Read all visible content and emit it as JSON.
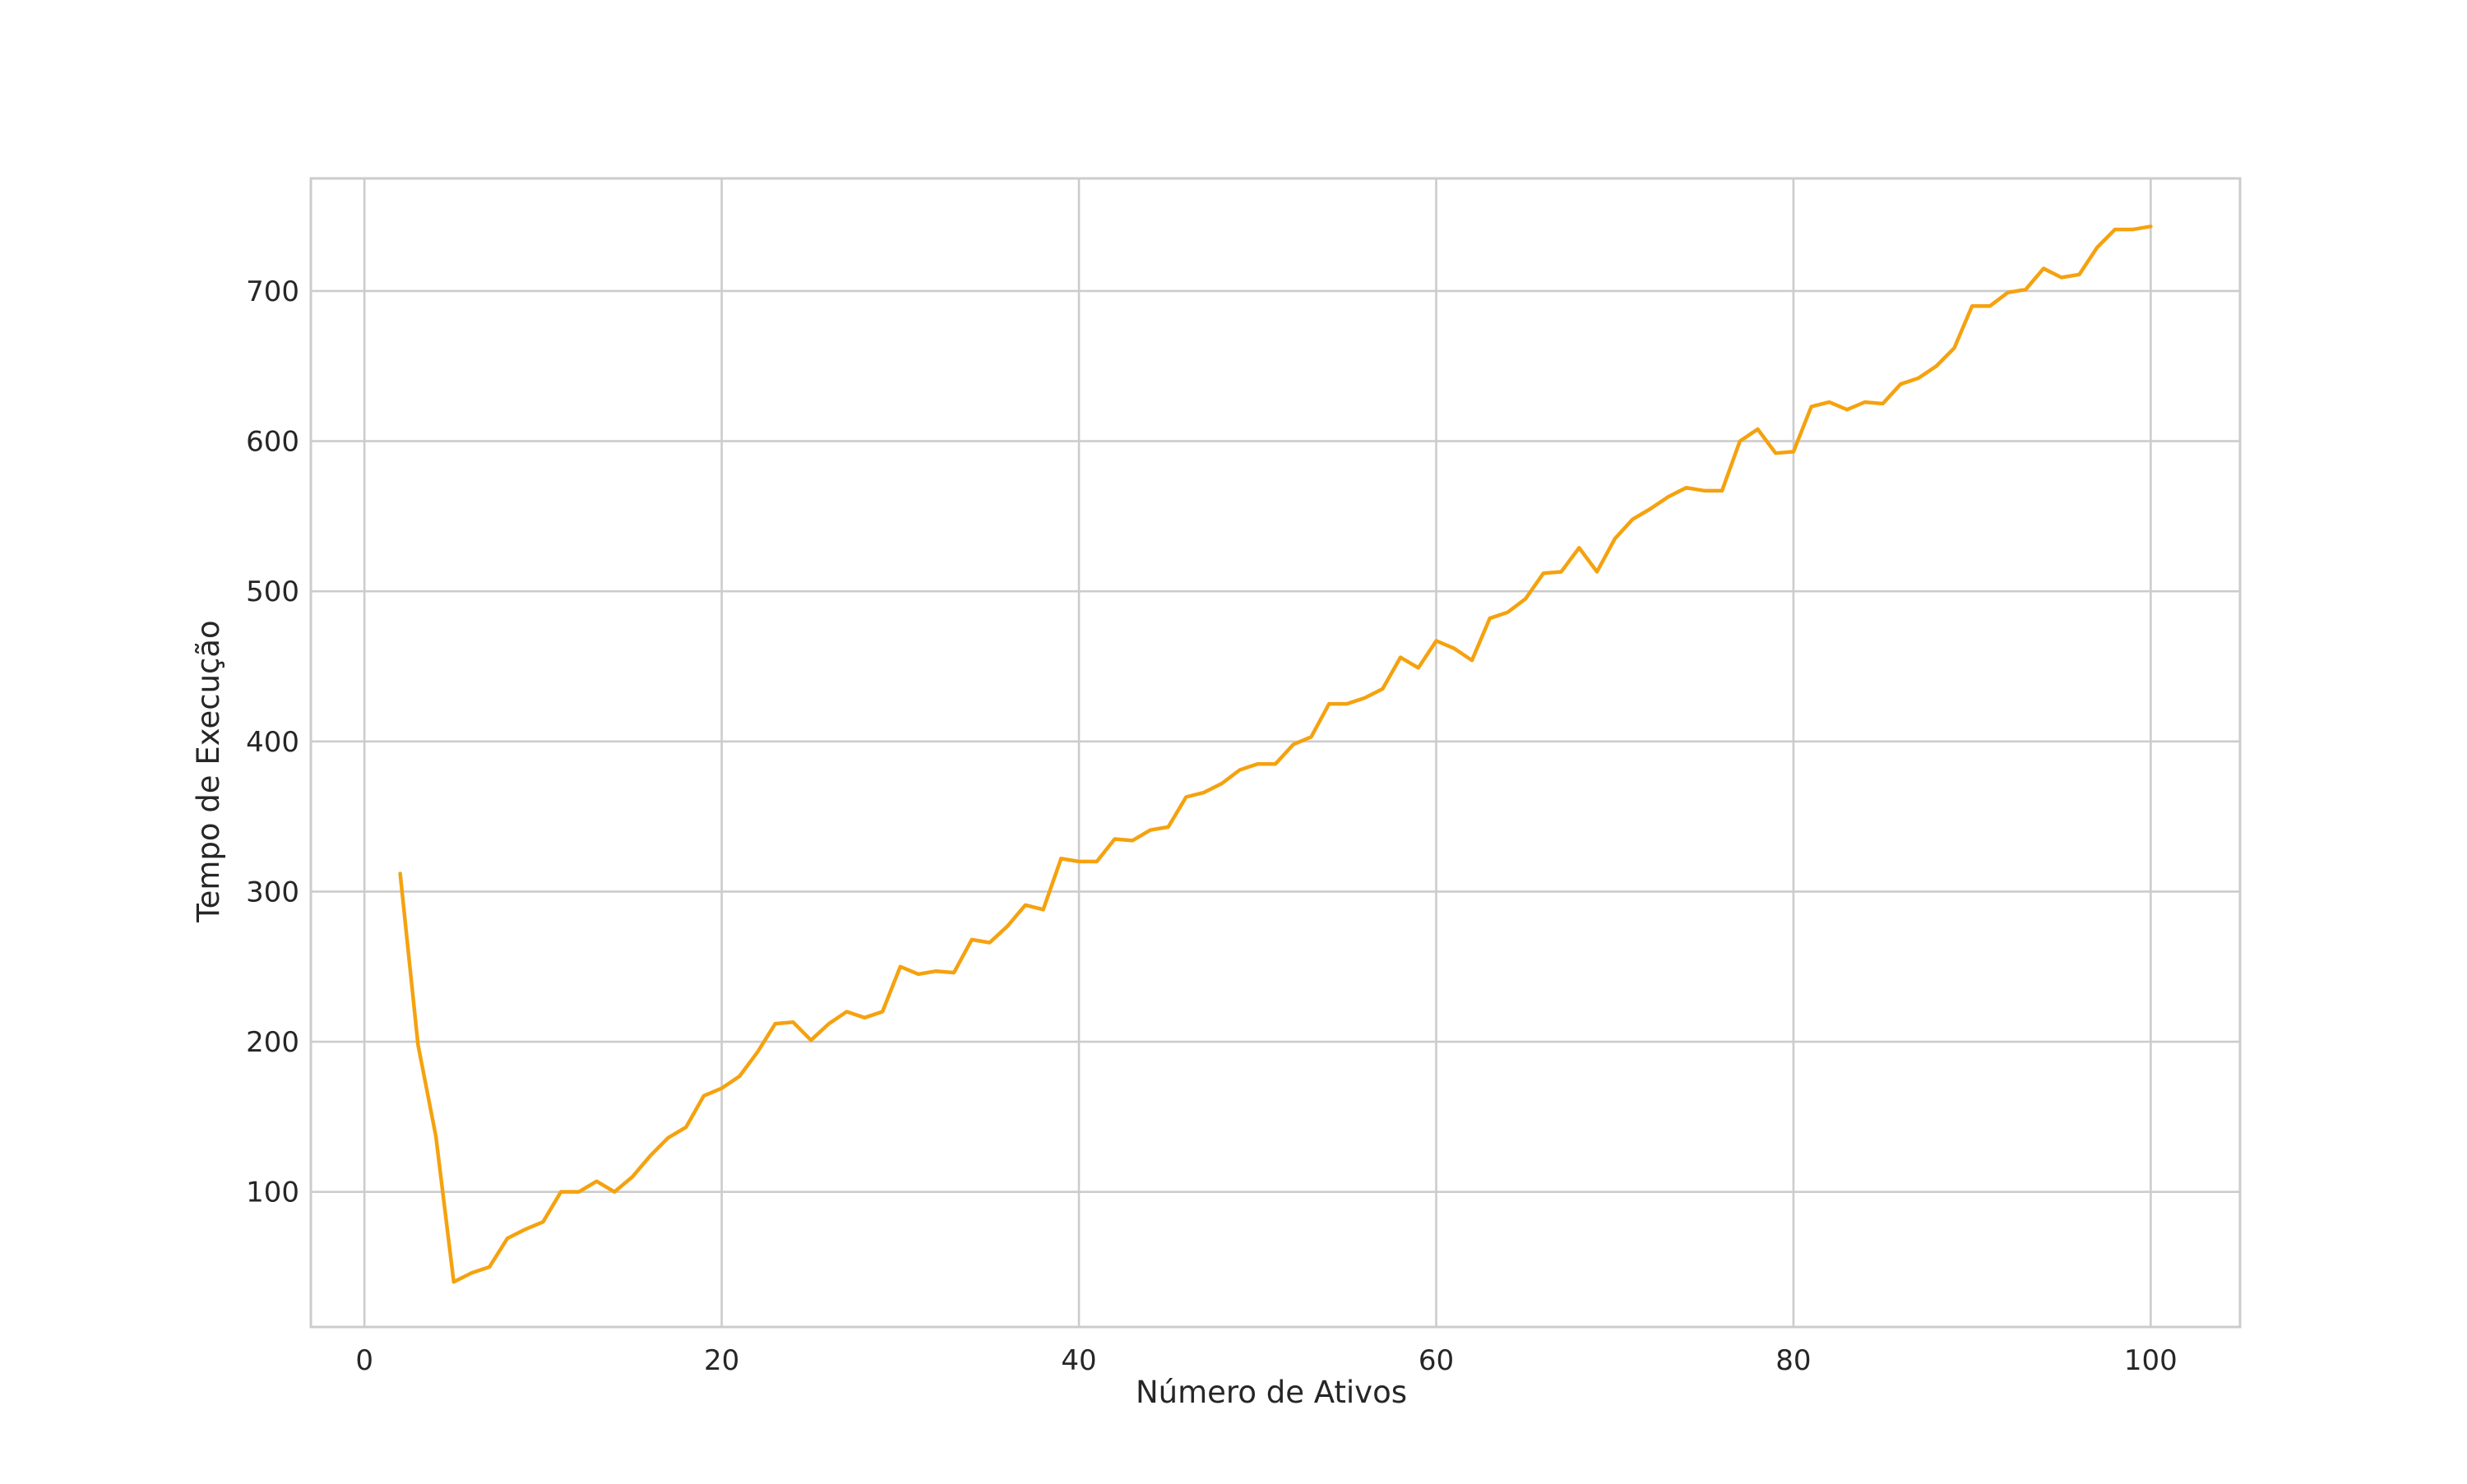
{
  "chart_data": {
    "type": "line",
    "title": "",
    "xlabel": "Número de Ativos",
    "ylabel": "Tempo de Execução",
    "xlim": [
      -3,
      105
    ],
    "ylim": [
      10,
      775
    ],
    "xticks": [
      0,
      20,
      40,
      60,
      80,
      100
    ],
    "yticks": [
      100,
      200,
      300,
      400,
      500,
      600,
      700
    ],
    "grid": true,
    "legend": "none",
    "series": [
      {
        "color": "#f5a20f",
        "x": [
          2,
          3,
          4,
          5,
          6,
          7,
          8,
          9,
          10,
          11,
          12,
          13,
          14,
          15,
          16,
          17,
          18,
          19,
          20,
          21,
          22,
          23,
          24,
          25,
          26,
          27,
          28,
          29,
          30,
          31,
          32,
          33,
          34,
          35,
          36,
          37,
          38,
          39,
          40,
          41,
          42,
          43,
          44,
          45,
          46,
          47,
          48,
          49,
          50,
          51,
          52,
          53,
          54,
          55,
          56,
          57,
          58,
          59,
          60,
          61,
          62,
          63,
          64,
          65,
          66,
          67,
          68,
          69,
          70,
          71,
          72,
          73,
          74,
          75,
          76,
          77,
          78,
          79,
          80,
          81,
          82,
          83,
          84,
          85,
          86,
          87,
          88,
          89,
          90,
          91,
          92,
          93,
          94,
          95,
          96,
          97,
          98,
          99,
          100
        ],
        "y": [
          312,
          198,
          137,
          40,
          46,
          50,
          69,
          75,
          80,
          100,
          100,
          107,
          100,
          110,
          124,
          136,
          143,
          164,
          169,
          177,
          193,
          212,
          213,
          201,
          212,
          220,
          216,
          220,
          250,
          245,
          247,
          246,
          268,
          266,
          277,
          291,
          288,
          322,
          320,
          320,
          335,
          334,
          341,
          343,
          363,
          366,
          372,
          381,
          385,
          385,
          398,
          403,
          425,
          425,
          429,
          435,
          456,
          449,
          467,
          462,
          454,
          482,
          486,
          495,
          512,
          513,
          529,
          513,
          535,
          548,
          555,
          563,
          569,
          567,
          567,
          600,
          608,
          592,
          593,
          623,
          626,
          621,
          626,
          625,
          638,
          642,
          650,
          662,
          690,
          690,
          699,
          701,
          715,
          709,
          711,
          729,
          741,
          741,
          743
        ]
      }
    ]
  }
}
